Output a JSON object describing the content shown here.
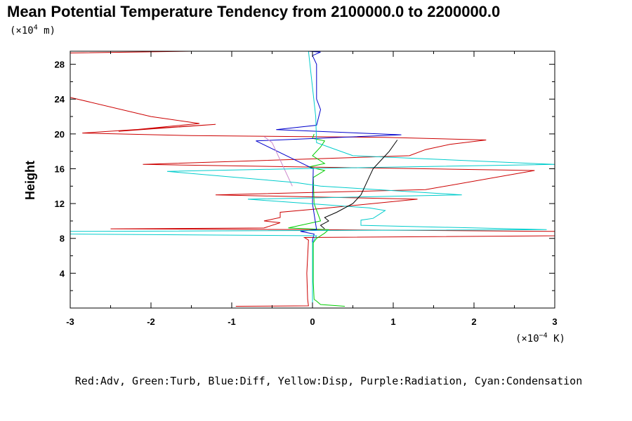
{
  "chart_data": {
    "type": "line",
    "title": "Mean Potential Temperature Tendency from 2100000.0 to 2200000.0",
    "y_unit_prefix": "(×10",
    "y_unit_exp": "4",
    "y_unit_suffix": " m)",
    "x_unit_prefix": "(×10",
    "x_unit_exp": "−4",
    "x_unit_suffix": " K)",
    "ylabel": "Height",
    "xlabel": "",
    "xlim": [
      -3,
      3
    ],
    "ylim": [
      0,
      29.5
    ],
    "xticks": [
      -3,
      -2,
      -1,
      0,
      1,
      2,
      3
    ],
    "xtick_labels": [
      "-3",
      "-2",
      "-1",
      "0",
      "1",
      "2",
      "3"
    ],
    "yticks": [
      4,
      8,
      12,
      16,
      20,
      24,
      28
    ],
    "ytick_labels": [
      "4",
      "8",
      "12",
      "16",
      "20",
      "24",
      "28"
    ],
    "grid": false,
    "legend_text": "Red:Adv, Green:Turb, Blue:Diff, Yellow:Disp, Purple:Radiation, Cyan:Condensation",
    "series": [
      {
        "name": "Adv",
        "color": "#cc0000",
        "points": [
          [
            -0.95,
            0.2
          ],
          [
            -0.05,
            0.25
          ],
          [
            -0.06,
            1
          ],
          [
            -0.07,
            4
          ],
          [
            -0.05,
            7.8
          ],
          [
            -0.1,
            8.1
          ],
          [
            3,
            8.3
          ],
          [
            3,
            8.8
          ],
          [
            0.05,
            9
          ],
          [
            -2.5,
            9.1
          ],
          [
            -0.6,
            9.2
          ],
          [
            -0.4,
            9.8
          ],
          [
            -0.6,
            10
          ],
          [
            -0.4,
            10.4
          ],
          [
            -0.4,
            11
          ],
          [
            0.2,
            11.5
          ],
          [
            1.3,
            12.5
          ],
          [
            -1.2,
            13
          ],
          [
            1.4,
            13.6
          ],
          [
            2.75,
            15.8
          ],
          [
            -2.1,
            16.5
          ],
          [
            1.2,
            17.5
          ],
          [
            1.4,
            18.2
          ],
          [
            1.7,
            18.8
          ],
          [
            2.15,
            19.3
          ],
          [
            0.9,
            19.6
          ],
          [
            -0.2,
            19.7
          ],
          [
            -1.5,
            19.8
          ],
          [
            -2.85,
            20.1
          ],
          [
            -1.2,
            21.1
          ],
          [
            -2.4,
            20.3
          ],
          [
            -1.4,
            21.2
          ],
          [
            -2,
            22
          ],
          [
            -3,
            24.2
          ]
        ]
      },
      {
        "name": "Adv",
        "color": "#cc0000",
        "points": [
          [
            -3,
            29.3
          ],
          [
            -1.5,
            29.5
          ],
          [
            -0.6,
            29.6
          ]
        ]
      },
      {
        "name": "Turb",
        "color": "#00cc00",
        "points": [
          [
            0.4,
            0.2
          ],
          [
            0.1,
            0.4
          ],
          [
            0.05,
            0.8
          ],
          [
            0.02,
            1
          ],
          [
            0.01,
            3
          ],
          [
            0.01,
            7.5
          ],
          [
            0.05,
            8
          ],
          [
            0.15,
            8.6
          ],
          [
            0.2,
            9
          ],
          [
            -0.3,
            9.2
          ],
          [
            0.1,
            10
          ],
          [
            0.02,
            12
          ],
          [
            0.01,
            15
          ],
          [
            0.15,
            15.8
          ],
          [
            -0.05,
            16.2
          ],
          [
            0.15,
            16.6
          ],
          [
            0,
            17.5
          ],
          [
            0.1,
            18.5
          ],
          [
            0.15,
            19.2
          ],
          [
            0,
            19.5
          ],
          [
            0.02,
            20
          ]
        ]
      },
      {
        "name": "Diff",
        "color": "#0000cc",
        "points": [
          [
            0,
            0.2
          ],
          [
            0,
            7.8
          ],
          [
            0.02,
            8.5
          ],
          [
            -0.15,
            8.8
          ],
          [
            0.05,
            9
          ],
          [
            0,
            12
          ],
          [
            0.01,
            16
          ],
          [
            -0.7,
            19.2
          ],
          [
            1.1,
            19.9
          ],
          [
            -0.45,
            20.5
          ],
          [
            0.05,
            21
          ],
          [
            0.1,
            22.8
          ],
          [
            0.05,
            24
          ],
          [
            0.05,
            28
          ],
          [
            0,
            29
          ],
          [
            0.1,
            29.4
          ],
          [
            -0.2,
            29.6
          ]
        ]
      },
      {
        "name": "Radiation",
        "color": "#cc88cc",
        "points": [
          [
            -0.25,
            14
          ],
          [
            -0.4,
            17
          ],
          [
            -0.5,
            19
          ],
          [
            -0.6,
            19.7
          ]
        ]
      },
      {
        "name": "Condensation",
        "color": "#00cccc",
        "points": [
          [
            0,
            0.2
          ],
          [
            0,
            7.5
          ],
          [
            0.05,
            8.3
          ],
          [
            -3,
            8.5
          ],
          [
            -3,
            8.8
          ],
          [
            2.9,
            9
          ],
          [
            0.6,
            9.5
          ],
          [
            0.6,
            10.1
          ],
          [
            0.75,
            10.3
          ],
          [
            0.9,
            11.2
          ],
          [
            0.7,
            11.5
          ],
          [
            -0.8,
            12.5
          ],
          [
            1.85,
            13
          ],
          [
            0.1,
            14
          ],
          [
            -0.2,
            14.4
          ],
          [
            -1.8,
            15.7
          ],
          [
            -0.2,
            16
          ],
          [
            3,
            16.5
          ],
          [
            0.5,
            17.5
          ],
          [
            0.2,
            18.5
          ],
          [
            0.05,
            19
          ],
          [
            0.04,
            22
          ],
          [
            -0.05,
            29.5
          ]
        ]
      },
      {
        "name": "",
        "color": "#000000",
        "points": [
          [
            0.15,
            9.1
          ],
          [
            0.1,
            9.5
          ],
          [
            0.2,
            10
          ],
          [
            0.15,
            10.4
          ],
          [
            0.3,
            11
          ],
          [
            0.5,
            12
          ],
          [
            0.6,
            13
          ],
          [
            0.65,
            14
          ],
          [
            0.7,
            15
          ],
          [
            0.75,
            16
          ],
          [
            0.85,
            17
          ],
          [
            0.95,
            18
          ],
          [
            1.05,
            19.3
          ]
        ]
      }
    ]
  }
}
